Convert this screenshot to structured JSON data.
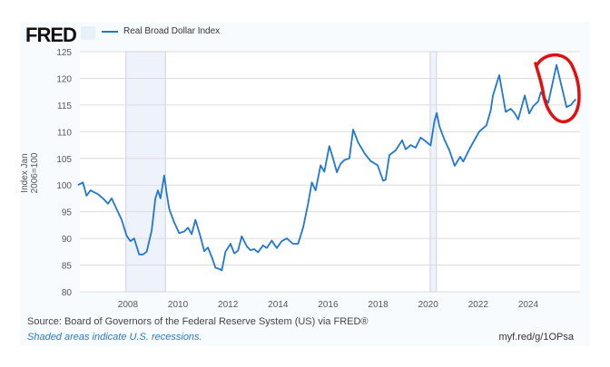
{
  "header": {
    "logo": "FRED",
    "logo_icon": "chart-line-icon"
  },
  "chart_data": {
    "type": "line",
    "series": [
      {
        "name": "Real Broad Dollar Index",
        "color": "#1f77d0",
        "points": [
          [
            2006.0,
            100
          ],
          [
            2006.2,
            100.5
          ],
          [
            2006.35,
            98
          ],
          [
            2006.5,
            99
          ],
          [
            2006.8,
            98.3
          ],
          [
            2007.0,
            97.5
          ],
          [
            2007.2,
            96.5
          ],
          [
            2007.35,
            97.5
          ],
          [
            2007.55,
            95.5
          ],
          [
            2007.75,
            93.5
          ],
          [
            2007.95,
            90.5
          ],
          [
            2008.1,
            89.5
          ],
          [
            2008.25,
            90
          ],
          [
            2008.45,
            87
          ],
          [
            2008.6,
            87
          ],
          [
            2008.75,
            87.5
          ],
          [
            2008.95,
            91.5
          ],
          [
            2009.1,
            97.5
          ],
          [
            2009.2,
            99
          ],
          [
            2009.3,
            97.5
          ],
          [
            2009.45,
            101.8
          ],
          [
            2009.55,
            98.5
          ],
          [
            2009.65,
            95.5
          ],
          [
            2009.85,
            93
          ],
          [
            2010.05,
            91
          ],
          [
            2010.25,
            91.3
          ],
          [
            2010.4,
            92
          ],
          [
            2010.55,
            90.8
          ],
          [
            2010.7,
            93.5
          ],
          [
            2010.9,
            90.3
          ],
          [
            2011.05,
            87.6
          ],
          [
            2011.2,
            88.3
          ],
          [
            2011.35,
            86.5
          ],
          [
            2011.5,
            84.5
          ],
          [
            2011.65,
            84.3
          ],
          [
            2011.75,
            84
          ],
          [
            2011.9,
            87.5
          ],
          [
            2012.1,
            89
          ],
          [
            2012.25,
            87.2
          ],
          [
            2012.4,
            87.7
          ],
          [
            2012.55,
            90.4
          ],
          [
            2012.75,
            88.5
          ],
          [
            2012.9,
            87.8
          ],
          [
            2013.05,
            88
          ],
          [
            2013.2,
            87.4
          ],
          [
            2013.4,
            88.7
          ],
          [
            2013.55,
            88.2
          ],
          [
            2013.75,
            89.6
          ],
          [
            2013.95,
            88.2
          ],
          [
            2014.15,
            89.5
          ],
          [
            2014.35,
            90
          ],
          [
            2014.6,
            89
          ],
          [
            2014.8,
            89
          ],
          [
            2015.0,
            92
          ],
          [
            2015.2,
            96.5
          ],
          [
            2015.35,
            100.5
          ],
          [
            2015.5,
            99
          ],
          [
            2015.7,
            103.7
          ],
          [
            2015.85,
            102.5
          ],
          [
            2016.05,
            107.3
          ],
          [
            2016.2,
            105
          ],
          [
            2016.35,
            102.4
          ],
          [
            2016.5,
            104
          ],
          [
            2016.66,
            104.7
          ],
          [
            2016.85,
            105
          ],
          [
            2017.0,
            110.4
          ],
          [
            2017.2,
            108
          ],
          [
            2017.45,
            106
          ],
          [
            2017.7,
            104.5
          ],
          [
            2017.98,
            103.7
          ],
          [
            2018.2,
            100.8
          ],
          [
            2018.3,
            101
          ],
          [
            2018.45,
            105.6
          ],
          [
            2018.7,
            106.5
          ],
          [
            2018.96,
            108.4
          ],
          [
            2019.1,
            106.7
          ],
          [
            2019.3,
            107.5
          ],
          [
            2019.5,
            107
          ],
          [
            2019.7,
            108.9
          ],
          [
            2019.9,
            108.2
          ],
          [
            2020.1,
            107.4
          ],
          [
            2020.25,
            112
          ],
          [
            2020.34,
            113.5
          ],
          [
            2020.45,
            111
          ],
          [
            2020.63,
            108.7
          ],
          [
            2020.85,
            106.5
          ],
          [
            2021.06,
            103.6
          ],
          [
            2021.28,
            105.3
          ],
          [
            2021.4,
            104.4
          ],
          [
            2021.68,
            107
          ],
          [
            2022.04,
            110
          ],
          [
            2022.33,
            111.2
          ],
          [
            2022.5,
            114
          ],
          [
            2022.59,
            116.8
          ],
          [
            2022.84,
            120.6
          ],
          [
            2023.1,
            113.7
          ],
          [
            2023.3,
            114.3
          ],
          [
            2023.45,
            113.5
          ],
          [
            2023.6,
            112.3
          ],
          [
            2023.86,
            116.8
          ],
          [
            2024.04,
            113.4
          ],
          [
            2024.2,
            114.8
          ],
          [
            2024.4,
            115.7
          ],
          [
            2024.5,
            117.4
          ],
          [
            2024.8,
            115.4
          ],
          [
            2025.13,
            122.5
          ],
          [
            2025.53,
            114.6
          ],
          [
            2025.7,
            115
          ],
          [
            2025.9,
            116.1
          ]
        ]
      }
    ],
    "legend": "top-left",
    "ylabel": "Index Jan 2006=100",
    "ylim": [
      80,
      125
    ],
    "yticks": [
      80,
      85,
      90,
      95,
      100,
      105,
      110,
      115,
      120,
      125
    ],
    "xlim": [
      2006.08,
      2026.07
    ],
    "xticks": [
      2008,
      2010,
      2012,
      2014,
      2016,
      2018,
      2020,
      2022,
      2024
    ],
    "grid": true,
    "recessions": [
      [
        2007.92,
        2009.5
      ],
      [
        2020.08,
        2020.33
      ]
    ],
    "annotation": {
      "type": "hand-drawn circle",
      "color": "#e01010",
      "around": "2025 peak"
    }
  },
  "footer": {
    "source": "Source: Board of Governors of the Federal Reserve System (US) via FRED®",
    "note": "Shaded areas indicate U.S. recessions.",
    "url": "myf.red/g/1OPsa"
  }
}
